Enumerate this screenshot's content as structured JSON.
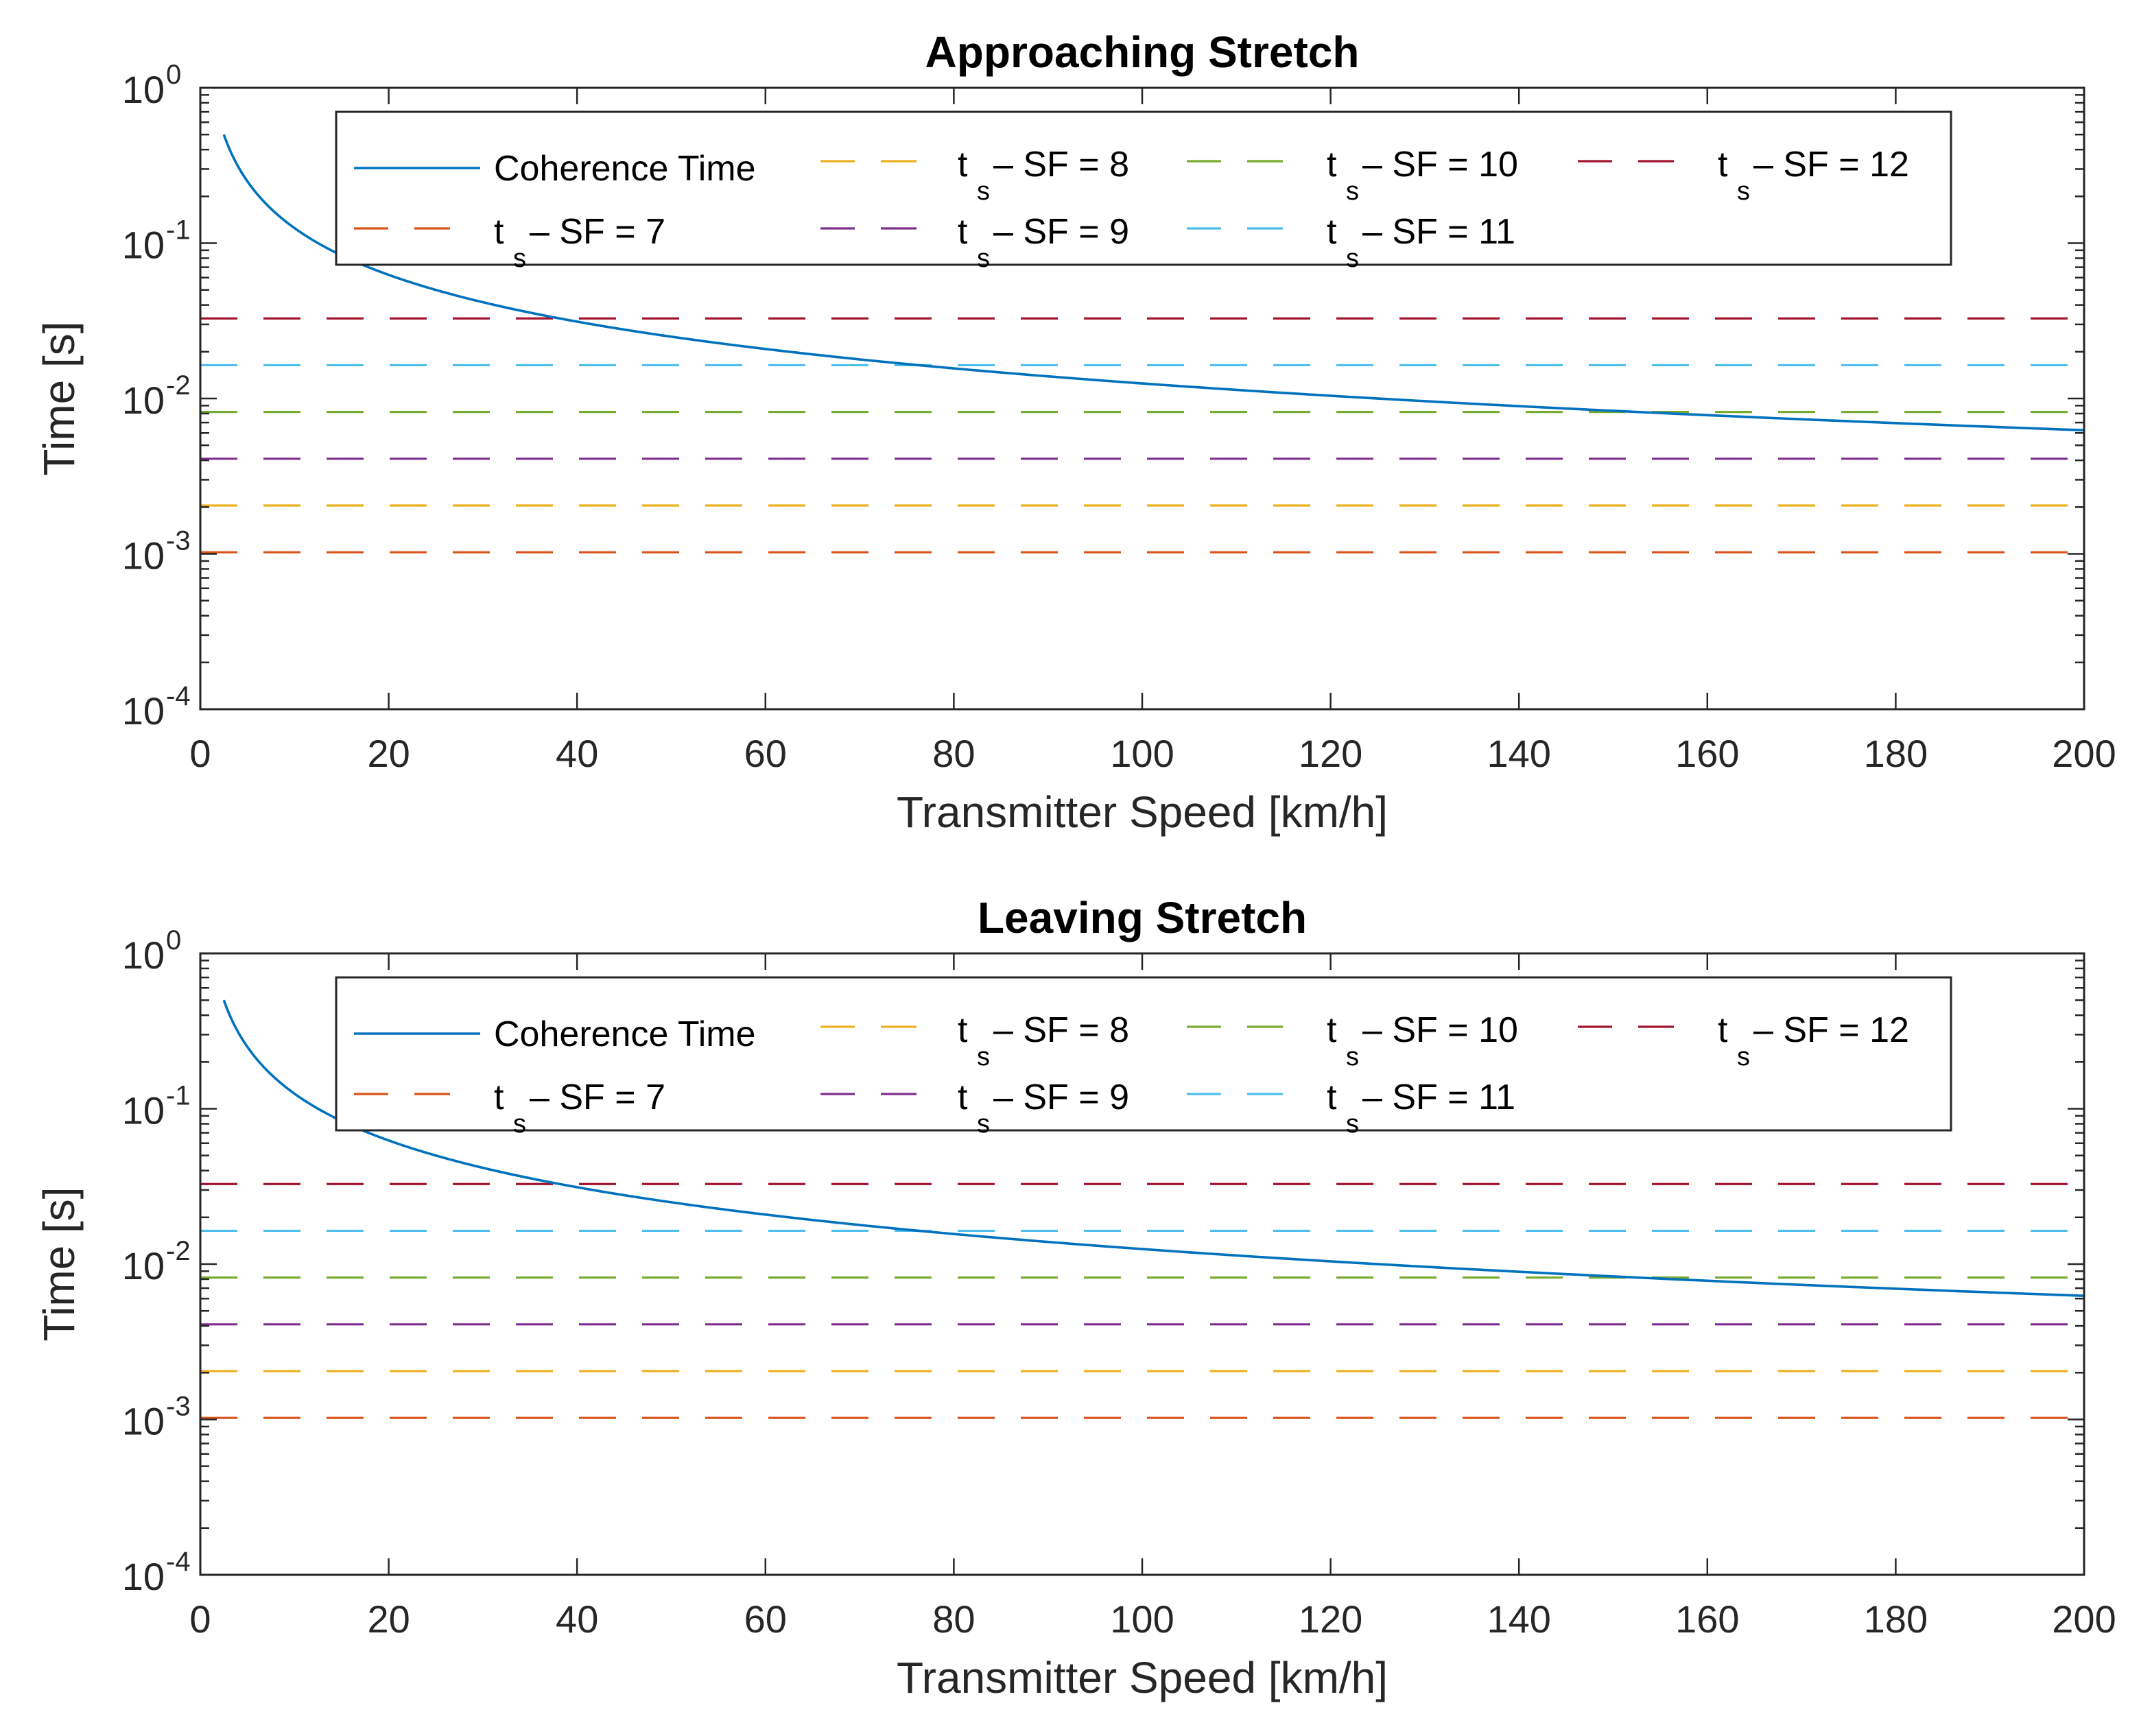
{
  "chart_data": [
    {
      "type": "line",
      "title": "Approaching Stretch",
      "xlabel": "Transmitter Speed [km/h]",
      "ylabel": "Time [s]",
      "xlim": [
        0,
        200
      ],
      "ylim": [
        0.0001,
        1
      ],
      "yscale": "log",
      "xticks": [
        "0",
        "20",
        "40",
        "60",
        "80",
        "100",
        "120",
        "140",
        "160",
        "180",
        "200"
      ],
      "yticks": [
        {
          "base": "10",
          "exp": "0",
          "value": 1
        },
        {
          "base": "10",
          "exp": "-1",
          "value": 0.1
        },
        {
          "base": "10",
          "exp": "-2",
          "value": 0.01
        },
        {
          "base": "10",
          "exp": "-3",
          "value": 0.001
        },
        {
          "base": "10",
          "exp": "-4",
          "value": 0.0001
        }
      ],
      "grid": false,
      "legend_placement": "top",
      "coherence": {
        "name": "Coherence Time",
        "color": "#0072BD",
        "x_start": 2.5,
        "x_end": 200,
        "k": 1.25
      },
      "series": [
        {
          "label_main": "t",
          "label_sub": "s",
          "label_rest": " – SF = 7",
          "value": 0.001024,
          "color": "#D95319"
        },
        {
          "label_main": "t",
          "label_sub": "s",
          "label_rest": " – SF = 8",
          "value": 0.002048,
          "color": "#EDB120"
        },
        {
          "label_main": "t",
          "label_sub": "s",
          "label_rest": " – SF = 9",
          "value": 0.004096,
          "color": "#7E2F8E"
        },
        {
          "label_main": "t",
          "label_sub": "s",
          "label_rest": " – SF = 10",
          "value": 0.008192,
          "color": "#77AC30"
        },
        {
          "label_main": "t",
          "label_sub": "s",
          "label_rest": " – SF = 11",
          "value": 0.016384,
          "color": "#4DBEEE"
        },
        {
          "label_main": "t",
          "label_sub": "s",
          "label_rest": " – SF = 12",
          "value": 0.032768,
          "color": "#A2142F"
        }
      ]
    },
    {
      "type": "line",
      "title": "Leaving Stretch",
      "xlabel": "Transmitter Speed [km/h]",
      "ylabel": "Time [s]",
      "xlim": [
        0,
        200
      ],
      "ylim": [
        0.0001,
        1
      ],
      "yscale": "log",
      "xticks": [
        "0",
        "20",
        "40",
        "60",
        "80",
        "100",
        "120",
        "140",
        "160",
        "180",
        "200"
      ],
      "yticks": [
        {
          "base": "10",
          "exp": "0",
          "value": 1
        },
        {
          "base": "10",
          "exp": "-1",
          "value": 0.1
        },
        {
          "base": "10",
          "exp": "-2",
          "value": 0.01
        },
        {
          "base": "10",
          "exp": "-3",
          "value": 0.001
        },
        {
          "base": "10",
          "exp": "-4",
          "value": 0.0001
        }
      ],
      "grid": false,
      "legend_placement": "top",
      "coherence": {
        "name": "Coherence Time",
        "color": "#0072BD",
        "x_start": 2.5,
        "x_end": 200,
        "k": 1.25
      },
      "series": [
        {
          "label_main": "t",
          "label_sub": "s",
          "label_rest": " – SF = 7",
          "value": 0.001024,
          "color": "#D95319"
        },
        {
          "label_main": "t",
          "label_sub": "s",
          "label_rest": " – SF = 8",
          "value": 0.002048,
          "color": "#EDB120"
        },
        {
          "label_main": "t",
          "label_sub": "s",
          "label_rest": " – SF = 9",
          "value": 0.004096,
          "color": "#7E2F8E"
        },
        {
          "label_main": "t",
          "label_sub": "s",
          "label_rest": " – SF = 10",
          "value": 0.008192,
          "color": "#77AC30"
        },
        {
          "label_main": "t",
          "label_sub": "s",
          "label_rest": " – SF = 11",
          "value": 0.016384,
          "color": "#4DBEEE"
        },
        {
          "label_main": "t",
          "label_sub": "s",
          "label_rest": " – SF = 12",
          "value": 0.032768,
          "color": "#A2142F"
        }
      ]
    }
  ]
}
